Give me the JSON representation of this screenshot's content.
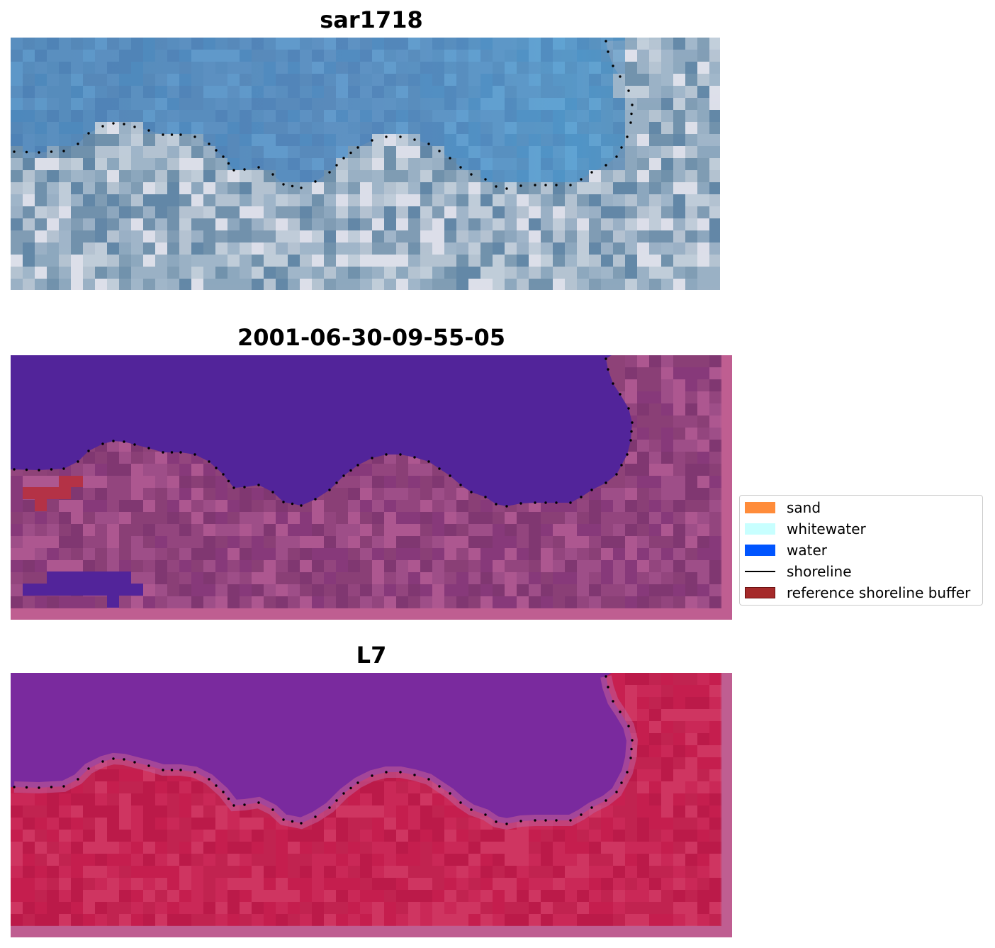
{
  "panels": [
    {
      "title": "sar1718",
      "kind": "rgb"
    },
    {
      "title": "2001-06-30-09-55-05",
      "kind": "classified"
    },
    {
      "title": "L7",
      "kind": "index"
    }
  ],
  "legend": {
    "items": [
      {
        "label": "sand",
        "color": "#ff8c3a",
        "shape": "patch"
      },
      {
        "label": "whitewater",
        "color": "#c8ffff",
        "shape": "patch"
      },
      {
        "label": "water",
        "color": "#0055ff",
        "shape": "patch"
      },
      {
        "label": "shoreline",
        "color": "#000000",
        "shape": "line"
      },
      {
        "label": "reference shoreline buffer",
        "color": "#a52a2a",
        "shape": "patch"
      }
    ]
  },
  "colors": {
    "classified_water": "#52249a",
    "classified_land": "#8e4278",
    "classified_border": "#bf5e91",
    "buffer": "#b43246",
    "index_water": "#7a2a9e",
    "index_land": "#c72050",
    "index_border": "#bf5e91"
  }
}
